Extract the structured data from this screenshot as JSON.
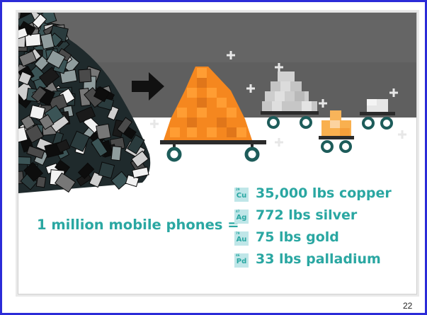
{
  "equation": {
    "label": "1 million mobile phones ="
  },
  "metals": [
    {
      "number": "29",
      "symbol": "Cu",
      "amount": "35,000 lbs copper",
      "color": "#f5871f"
    },
    {
      "number": "47",
      "symbol": "Ag",
      "amount": "772 lbs silver",
      "color": "#c8c8c8"
    },
    {
      "number": "79",
      "symbol": "Au",
      "amount": "75 lbs gold",
      "color": "#f8b45a"
    },
    {
      "number": "46",
      "symbol": "Pd",
      "amount": "33 lbs palladium",
      "color": "#e6e6e6"
    }
  ],
  "page_number": "22",
  "colors": {
    "frame": "#2b2bd8",
    "accent": "#2aa7a2",
    "sky": "#5e5e5e"
  }
}
